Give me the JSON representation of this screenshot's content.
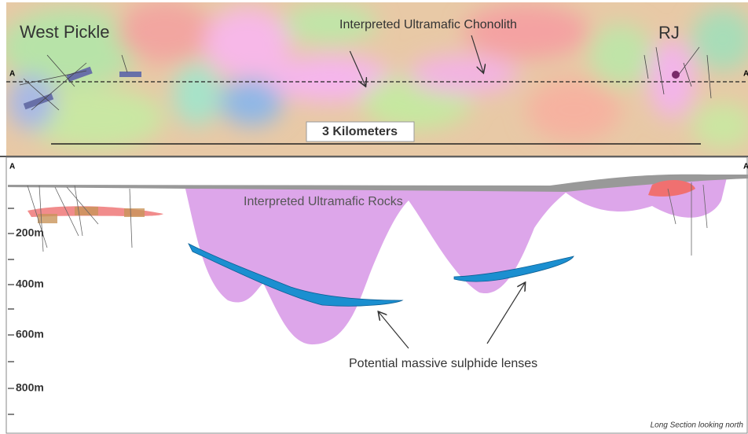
{
  "plan_view": {
    "west_label": "West Pickle",
    "center_label": "Interpreted Ultramafic Chonolith",
    "east_label": "RJ",
    "section_start": "A",
    "section_end": "A",
    "scale_bar": "3 Kilometers"
  },
  "long_section": {
    "section_start": "A",
    "section_end": "A",
    "rock_label": "Interpreted Ultramafic Rocks",
    "lens_label": "Potential massive sulphide lenses",
    "depth_labels": [
      "200m",
      "400m",
      "600m",
      "800m"
    ],
    "caption": "Long Section looking north"
  }
}
